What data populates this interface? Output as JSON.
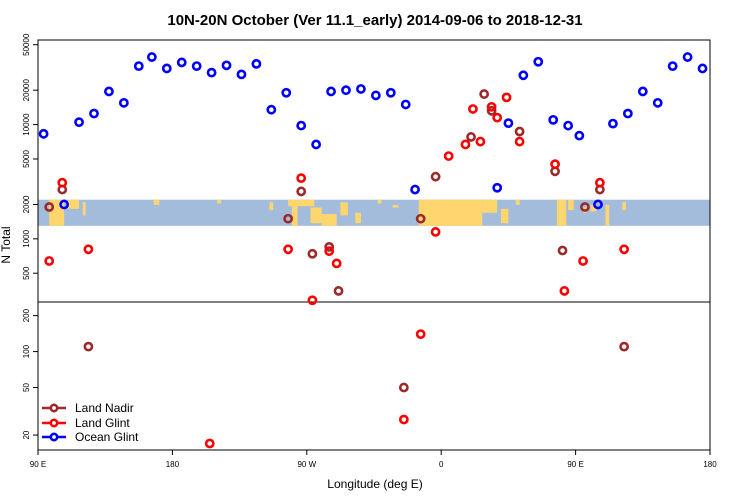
{
  "chart_data": {
    "type": "scatter",
    "title": "10N-20N October (Ver 11.1_early)   2014-09-06 to 2018-12-31",
    "xlabel": "Longitude (deg E)",
    "ylabel": "N Total",
    "y_scale": "log",
    "xlim": [
      0,
      360
    ],
    "x_ticks": [
      {
        "v": 0,
        "label": "90 E"
      },
      {
        "v": 72,
        "label": "180"
      },
      {
        "v": 144,
        "label": "90 W"
      },
      {
        "v": 216,
        "label": "0"
      },
      {
        "v": 288,
        "label": "90 E"
      },
      {
        "v": 360,
        "label": "180"
      }
    ],
    "upper_panel": {
      "ylim": [
        280,
        55000
      ],
      "y_ticks": [
        500,
        1000,
        2000,
        5000,
        10000,
        20000,
        50000
      ],
      "y_tick_labels": [
        "500",
        "1000",
        "2000",
        "5000",
        "10000",
        "20000",
        "50000"
      ]
    },
    "lower_panel": {
      "ylim": [
        15,
        260
      ],
      "y_ticks": [
        20,
        50,
        100,
        200
      ],
      "y_tick_labels": [
        "20",
        "50",
        "100",
        "200"
      ]
    },
    "map_strip": {
      "y_range": [
        1300,
        2200
      ],
      "ocean_color": "#a4bcdc",
      "land_color": "#ffd66e"
    },
    "series": [
      {
        "name": "Land Nadir",
        "color": "#9b2a2a",
        "points": [
          [
            6,
            1900
          ],
          [
            13,
            2700
          ],
          [
            27,
            110
          ],
          [
            134,
            1500
          ],
          [
            141,
            2600
          ],
          [
            147,
            740
          ],
          [
            156,
            850
          ],
          [
            161,
            350
          ],
          [
            196,
            50
          ],
          [
            205,
            1500
          ],
          [
            213,
            3500
          ],
          [
            232,
            7800
          ],
          [
            239,
            18500
          ],
          [
            243,
            13200
          ],
          [
            258,
            8700
          ],
          [
            277,
            3900
          ],
          [
            281,
            790
          ],
          [
            293,
            1900
          ],
          [
            301,
            2700
          ],
          [
            314,
            110
          ]
        ]
      },
      {
        "name": "Land Glint",
        "color": "#ff0000",
        "points": [
          [
            6,
            640
          ],
          [
            13,
            3100
          ],
          [
            27,
            810
          ],
          [
            92,
            17
          ],
          [
            134,
            810
          ],
          [
            141,
            3400
          ],
          [
            147,
            290
          ],
          [
            156,
            780
          ],
          [
            160,
            610
          ],
          [
            196,
            27
          ],
          [
            205,
            140
          ],
          [
            213,
            1150
          ],
          [
            220,
            5300
          ],
          [
            229,
            6700
          ],
          [
            233,
            13700
          ],
          [
            237,
            7100
          ],
          [
            243,
            14300
          ],
          [
            246,
            11500
          ],
          [
            251,
            17300
          ],
          [
            258,
            7100
          ],
          [
            277,
            4500
          ],
          [
            282,
            350
          ],
          [
            292,
            640
          ],
          [
            301,
            3100
          ],
          [
            314,
            810
          ]
        ]
      },
      {
        "name": "Ocean Glint",
        "color": "#0000ff",
        "points": [
          [
            3,
            8300
          ],
          [
            14,
            2000
          ],
          [
            22,
            10500
          ],
          [
            30,
            12500
          ],
          [
            38,
            19500
          ],
          [
            46,
            15500
          ],
          [
            54,
            32500
          ],
          [
            61,
            39000
          ],
          [
            69,
            31000
          ],
          [
            77,
            35000
          ],
          [
            85,
            32500
          ],
          [
            93,
            28500
          ],
          [
            101,
            33000
          ],
          [
            109,
            27500
          ],
          [
            117,
            34000
          ],
          [
            125,
            13500
          ],
          [
            133,
            19000
          ],
          [
            141,
            9800
          ],
          [
            149,
            6700
          ],
          [
            157,
            19500
          ],
          [
            165,
            20000
          ],
          [
            173,
            20500
          ],
          [
            181,
            18000
          ],
          [
            189,
            19000
          ],
          [
            197,
            15000
          ],
          [
            202,
            2700
          ],
          [
            252,
            10300
          ],
          [
            246,
            2800
          ],
          [
            260,
            27000
          ],
          [
            268,
            35500
          ],
          [
            276,
            11000
          ],
          [
            284,
            9800
          ],
          [
            290,
            8000
          ],
          [
            300,
            2000
          ],
          [
            308,
            10200
          ],
          [
            316,
            12500
          ],
          [
            324,
            19500
          ],
          [
            332,
            15500
          ],
          [
            340,
            32500
          ],
          [
            348,
            39000
          ],
          [
            356,
            31000
          ]
        ]
      }
    ]
  }
}
